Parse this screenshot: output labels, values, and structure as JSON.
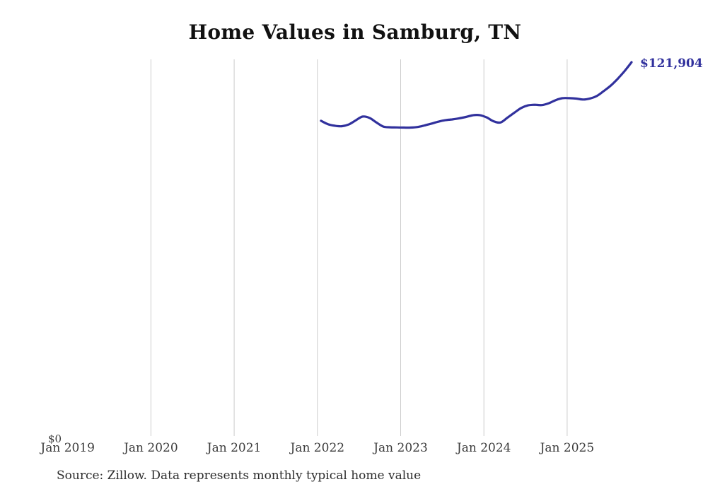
{
  "title": "Home Values in Samburg, TN",
  "source_note": "Source: Zillow. Data represents monthly typical home value",
  "y_axis": {
    "zero_label": "$0"
  },
  "x_axis": {
    "tick_labels": [
      "Jan 2019",
      "Jan 2020",
      "Jan 2021",
      "Jan 2022",
      "Jan 2023",
      "Jan 2024",
      "Jan 2025"
    ],
    "tick_years": [
      2019,
      2020,
      2021,
      2022,
      2023,
      2024,
      2025
    ],
    "gridline_years": [
      2020,
      2021,
      2022,
      2023,
      2024,
      2025
    ]
  },
  "colors": {
    "line": "#31319d",
    "end_label": "#31319d",
    "gridline": "#cccccc",
    "title": "#111111",
    "tick_label": "#3c3c3c",
    "source": "#2d2d2d",
    "background": "#ffffff"
  },
  "chart_data": {
    "type": "line",
    "title": "Home Values in Samburg, TN",
    "series_name": "Monthly typical home value",
    "x": [
      "2022-01",
      "2022-02",
      "2022-03",
      "2022-04",
      "2022-05",
      "2022-06",
      "2022-07",
      "2022-08",
      "2022-09",
      "2022-10",
      "2022-11",
      "2022-12",
      "2023-01",
      "2023-02",
      "2023-03",
      "2023-04",
      "2023-05",
      "2023-06",
      "2023-07",
      "2023-08",
      "2023-09",
      "2023-10",
      "2023-11",
      "2023-12",
      "2024-01",
      "2024-02",
      "2024-03",
      "2024-04",
      "2024-05",
      "2024-06",
      "2024-07",
      "2024-08",
      "2024-09",
      "2024-10",
      "2024-11",
      "2024-12",
      "2025-01",
      "2025-02",
      "2025-03",
      "2025-04",
      "2025-05",
      "2025-06",
      "2025-07",
      "2025-08",
      "2025-09",
      "2025-10"
    ],
    "values": [
      102900,
      101800,
      101300,
      101150,
      101700,
      103000,
      104250,
      103850,
      102400,
      101050,
      100800,
      100750,
      100700,
      100700,
      100900,
      101400,
      102000,
      102600,
      103100,
      103350,
      103700,
      104150,
      104700,
      104750,
      104000,
      102750,
      102350,
      103900,
      105500,
      107050,
      107900,
      108100,
      108000,
      108600,
      109600,
      110250,
      110250,
      110100,
      109800,
      110150,
      111000,
      112600,
      114350,
      116550,
      119050,
      121904
    ],
    "final_value": 121904,
    "final_value_label": "$121,904",
    "xlabel": "",
    "ylabel": "",
    "ylim": [
      0,
      122600
    ],
    "x_visible_range": [
      "Jan 2019",
      "Oct 2025"
    ],
    "grid": "vertical-yearly",
    "legend": "none"
  }
}
